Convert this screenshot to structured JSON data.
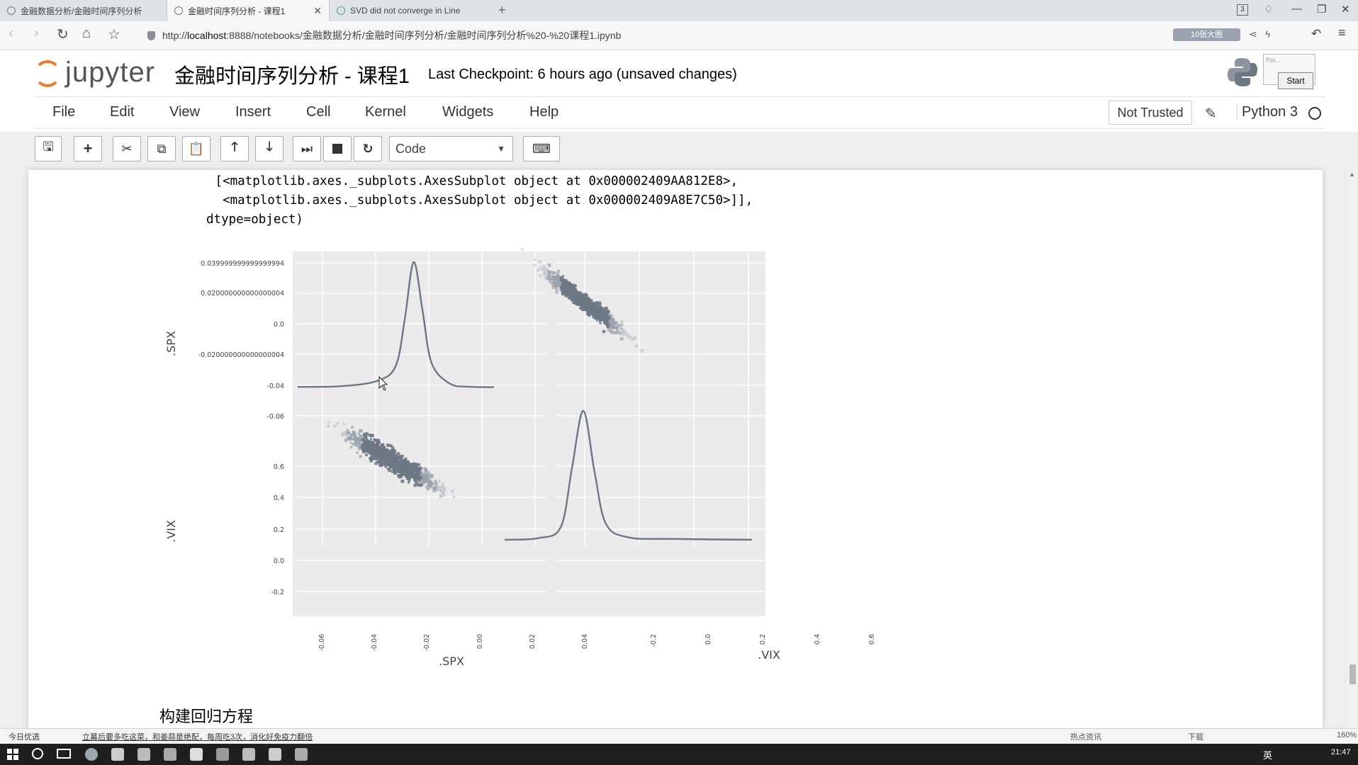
{
  "browser": {
    "tabs": [
      {
        "label": "金融数据分析/金融时间序列分析",
        "active": false
      },
      {
        "label": "金融时间序列分析 - 课程1",
        "active": true
      },
      {
        "label": "SVD did not converge in Line",
        "active": false
      }
    ],
    "new_tab": "+",
    "url_prefix": "http://",
    "url_host": "localhost",
    "url_rest": ":8888/notebooks/金融数据分析/金融时间序列分析/金融时间序列分析%20-%20课程1.ipynb",
    "addr_badge": "10张大图",
    "tab_count": "3"
  },
  "jupyter": {
    "logo_text": "jupyter",
    "notebook_title": "金融时间序列分析 - 课程1",
    "checkpoint": "Last Checkpoint: 6 hours ago (unsaved changes)",
    "menu": [
      "File",
      "Edit",
      "View",
      "Insert",
      "Cell",
      "Kernel",
      "Widgets",
      "Help"
    ],
    "not_trusted": "Not Trusted",
    "kernel": "Python 3",
    "cell_type": "Code",
    "popup_label": "Poi...",
    "start_button": "Start"
  },
  "output": {
    "line1": " [<matplotlib.axes._subplots.AxesSubplot object at 0x000002409AA812E8>,",
    "line2": "  <matplotlib.axes._subplots.AxesSubplot object at 0x000002409A8E7C50>]],",
    "line3": "dtype=object)"
  },
  "chart_data": {
    "type": "scatter",
    "kind": "pair-plot (scatter matrix with KDE diagonals)",
    "variables": [
      ".SPX",
      ".VIX"
    ],
    "y_axis_label_top": ".SPX",
    "y_axis_label_bottom": ".VIX",
    "x_axis_label_left": ".SPX",
    "x_axis_label_right": ".VIX",
    "spx_y_ticks": [
      "0.039999999999999994",
      "0.020000000000000004",
      "0.0",
      "-0.020000000000000004",
      "-0.04",
      "-0.06"
    ],
    "vix_y_ticks": [
      "0.6",
      "0.4",
      "0.2",
      "0.0",
      "-0.2"
    ],
    "spx_x_ticks": [
      "-0.06",
      "-0.04",
      "-0.02",
      "0.00",
      "0.02",
      "0.04"
    ],
    "vix_x_ticks": [
      "-0.2",
      "0.0",
      "0.2",
      "0.4",
      "0.6"
    ],
    "spx_kde": {
      "x": [
        -0.065,
        -0.04,
        -0.02,
        -0.01,
        -0.005,
        0.0,
        0.005,
        0.01,
        0.02,
        0.03,
        0.045
      ],
      "y": [
        0.2,
        0.5,
        2.5,
        8,
        25,
        46,
        28,
        9,
        1.5,
        0.3,
        0.1
      ]
    },
    "vix_kde": {
      "x": [
        -0.35,
        -0.2,
        -0.1,
        -0.05,
        0.0,
        0.05,
        0.1,
        0.2,
        0.4,
        0.75
      ],
      "y": [
        0.0,
        0.1,
        0.8,
        4.5,
        8.0,
        4.2,
        1.0,
        0.15,
        0.05,
        0.0
      ]
    },
    "correlation": "negative",
    "grid": true,
    "background": "#ebebeb",
    "line_color": "#6b7785"
  },
  "notebook": {
    "next_heading": "构建回归方程"
  },
  "statusbar": {
    "left": "今日优选",
    "news": "立幕后要多吃这菜，和姜蒜是绝配，每周吃3次，消化好免疫力翻倍",
    "items": [
      "热点资讯",
      "下载"
    ],
    "zoom": "160%"
  },
  "taskbar": {
    "lang": "英",
    "clock": "21:47"
  }
}
